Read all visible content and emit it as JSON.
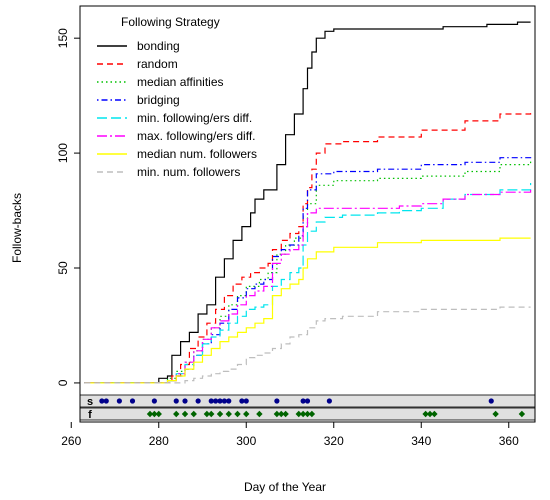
{
  "chart_data": {
    "type": "line",
    "title": "",
    "xlabel": "Day of the Year",
    "ylabel": "Follow-backs",
    "xlim": [
      262,
      366
    ],
    "ylim": [
      -17,
      164
    ],
    "xticks": [
      260,
      280,
      300,
      320,
      340,
      360
    ],
    "yticks": [
      0,
      50,
      100,
      150
    ],
    "grid": false,
    "legend": {
      "title": "Following Strategy",
      "placement": "top-left"
    },
    "series": [
      {
        "name": "bonding",
        "color": "#000000",
        "dash": "solid",
        "points": [
          [
            263,
            0
          ],
          [
            279,
            0
          ],
          [
            280,
            2
          ],
          [
            282,
            3
          ],
          [
            283,
            12
          ],
          [
            285,
            18
          ],
          [
            287,
            22
          ],
          [
            289,
            30
          ],
          [
            291,
            34
          ],
          [
            293,
            46
          ],
          [
            295,
            54
          ],
          [
            297,
            62
          ],
          [
            299,
            68
          ],
          [
            301,
            74
          ],
          [
            302,
            80
          ],
          [
            304,
            84
          ],
          [
            306,
            84
          ],
          [
            307,
            95
          ],
          [
            309,
            108
          ],
          [
            311,
            117
          ],
          [
            313,
            128
          ],
          [
            314,
            137
          ],
          [
            315,
            144
          ],
          [
            316,
            150
          ],
          [
            318,
            153
          ],
          [
            320,
            154
          ],
          [
            325,
            154
          ],
          [
            335,
            154
          ],
          [
            345,
            155
          ],
          [
            355,
            156
          ],
          [
            362,
            157
          ],
          [
            365,
            157
          ]
        ]
      },
      {
        "name": "random",
        "color": "#ff0000",
        "dash": "dashed",
        "points": [
          [
            263,
            0
          ],
          [
            281,
            0
          ],
          [
            283,
            3
          ],
          [
            285,
            8
          ],
          [
            287,
            15
          ],
          [
            289,
            20
          ],
          [
            291,
            26
          ],
          [
            293,
            32
          ],
          [
            295,
            38
          ],
          [
            297,
            43
          ],
          [
            299,
            46
          ],
          [
            301,
            48
          ],
          [
            303,
            50
          ],
          [
            305,
            52
          ],
          [
            306,
            58
          ],
          [
            308,
            62
          ],
          [
            310,
            65
          ],
          [
            312,
            68
          ],
          [
            313,
            78
          ],
          [
            314,
            85
          ],
          [
            315,
            93
          ],
          [
            316,
            100
          ],
          [
            318,
            104
          ],
          [
            322,
            105
          ],
          [
            330,
            107
          ],
          [
            340,
            110
          ],
          [
            350,
            114
          ],
          [
            358,
            117
          ],
          [
            365,
            118
          ]
        ]
      },
      {
        "name": "median affinities",
        "color": "#00c000",
        "dash": "dotted",
        "points": [
          [
            263,
            0
          ],
          [
            280,
            0
          ],
          [
            282,
            2
          ],
          [
            284,
            5
          ],
          [
            286,
            9
          ],
          [
            288,
            14
          ],
          [
            290,
            19
          ],
          [
            292,
            24
          ],
          [
            294,
            29
          ],
          [
            296,
            34
          ],
          [
            298,
            38
          ],
          [
            300,
            42
          ],
          [
            303,
            45
          ],
          [
            305,
            48
          ],
          [
            307,
            56
          ],
          [
            309,
            60
          ],
          [
            311,
            63
          ],
          [
            313,
            68
          ],
          [
            314,
            78
          ],
          [
            316,
            86
          ],
          [
            320,
            88
          ],
          [
            330,
            89
          ],
          [
            340,
            90
          ],
          [
            350,
            92
          ],
          [
            358,
            95
          ],
          [
            365,
            97
          ]
        ]
      },
      {
        "name": "bridging",
        "color": "#0000ff",
        "dash": "dashdot",
        "points": [
          [
            263,
            0
          ],
          [
            280,
            0
          ],
          [
            282,
            1
          ],
          [
            284,
            3
          ],
          [
            286,
            6
          ],
          [
            288,
            12
          ],
          [
            290,
            17
          ],
          [
            292,
            21
          ],
          [
            294,
            26
          ],
          [
            296,
            32
          ],
          [
            298,
            37
          ],
          [
            300,
            41
          ],
          [
            302,
            43
          ],
          [
            304,
            45
          ],
          [
            306,
            55
          ],
          [
            308,
            58
          ],
          [
            310,
            60
          ],
          [
            312,
            64
          ],
          [
            313,
            76
          ],
          [
            314,
            84
          ],
          [
            316,
            91
          ],
          [
            320,
            92
          ],
          [
            325,
            92
          ],
          [
            330,
            93
          ],
          [
            340,
            95
          ],
          [
            350,
            96
          ],
          [
            358,
            98
          ],
          [
            365,
            99
          ]
        ]
      },
      {
        "name": "min. following/ers diff.",
        "color": "#00e5ee",
        "dash": "longdash",
        "points": [
          [
            263,
            0
          ],
          [
            280,
            0
          ],
          [
            282,
            1
          ],
          [
            284,
            4
          ],
          [
            286,
            8
          ],
          [
            288,
            12
          ],
          [
            290,
            17
          ],
          [
            292,
            20
          ],
          [
            294,
            23
          ],
          [
            296,
            26
          ],
          [
            298,
            29
          ],
          [
            300,
            32
          ],
          [
            302,
            33
          ],
          [
            304,
            34
          ],
          [
            306,
            42
          ],
          [
            308,
            45
          ],
          [
            310,
            48
          ],
          [
            312,
            50
          ],
          [
            313,
            60
          ],
          [
            314,
            66
          ],
          [
            316,
            70
          ],
          [
            318,
            72
          ],
          [
            322,
            73
          ],
          [
            330,
            74
          ],
          [
            335,
            75
          ],
          [
            340,
            76
          ],
          [
            345,
            80
          ],
          [
            350,
            82
          ],
          [
            358,
            84
          ],
          [
            365,
            87
          ]
        ]
      },
      {
        "name": "max. following/ers diff.",
        "color": "#ff00ff",
        "dash": "dashdot2",
        "points": [
          [
            263,
            0
          ],
          [
            280,
            0
          ],
          [
            282,
            1
          ],
          [
            284,
            4
          ],
          [
            286,
            9
          ],
          [
            288,
            14
          ],
          [
            290,
            19
          ],
          [
            292,
            24
          ],
          [
            294,
            27
          ],
          [
            296,
            30
          ],
          [
            298,
            34
          ],
          [
            300,
            38
          ],
          [
            302,
            40
          ],
          [
            304,
            42
          ],
          [
            306,
            52
          ],
          [
            308,
            56
          ],
          [
            310,
            58
          ],
          [
            312,
            60
          ],
          [
            313,
            68
          ],
          [
            314,
            74
          ],
          [
            316,
            76
          ],
          [
            320,
            76
          ],
          [
            325,
            76
          ],
          [
            330,
            76
          ],
          [
            335,
            77
          ],
          [
            340,
            78
          ],
          [
            345,
            80
          ],
          [
            350,
            82
          ],
          [
            358,
            83
          ],
          [
            365,
            84
          ]
        ]
      },
      {
        "name": "median num. followers",
        "color": "#ffff00",
        "dash": "solid",
        "points": [
          [
            263,
            0
          ],
          [
            280,
            0
          ],
          [
            282,
            1
          ],
          [
            284,
            3
          ],
          [
            286,
            6
          ],
          [
            288,
            9
          ],
          [
            290,
            12
          ],
          [
            292,
            15
          ],
          [
            294,
            18
          ],
          [
            296,
            20
          ],
          [
            298,
            22
          ],
          [
            300,
            24
          ],
          [
            302,
            26
          ],
          [
            304,
            28
          ],
          [
            306,
            38
          ],
          [
            308,
            41
          ],
          [
            310,
            43
          ],
          [
            312,
            45
          ],
          [
            313,
            50
          ],
          [
            314,
            54
          ],
          [
            316,
            57
          ],
          [
            320,
            59
          ],
          [
            330,
            61
          ],
          [
            340,
            62
          ],
          [
            350,
            62
          ],
          [
            358,
            63
          ],
          [
            365,
            63
          ]
        ]
      },
      {
        "name": "min. num. followers",
        "color": "#bebebe",
        "dash": "dashed",
        "points": [
          [
            263,
            0
          ],
          [
            284,
            0
          ],
          [
            286,
            1
          ],
          [
            288,
            2
          ],
          [
            290,
            3
          ],
          [
            292,
            4
          ],
          [
            294,
            5
          ],
          [
            296,
            6
          ],
          [
            298,
            8
          ],
          [
            300,
            11
          ],
          [
            302,
            12
          ],
          [
            304,
            13
          ],
          [
            306,
            15
          ],
          [
            308,
            17
          ],
          [
            310,
            20
          ],
          [
            312,
            21
          ],
          [
            314,
            24
          ],
          [
            316,
            27
          ],
          [
            318,
            28
          ],
          [
            322,
            29
          ],
          [
            330,
            31
          ],
          [
            340,
            32
          ],
          [
            350,
            32
          ],
          [
            358,
            33
          ],
          [
            365,
            33
          ]
        ]
      }
    ],
    "strips": [
      {
        "label": "s",
        "color": "#00008b",
        "marker": "circle",
        "days": [
          267,
          268,
          271,
          274,
          279,
          284,
          286,
          289,
          292,
          293,
          294,
          295,
          296,
          299,
          300,
          307,
          313,
          314,
          319,
          356
        ]
      },
      {
        "label": "f",
        "color": "#006400",
        "marker": "diamond",
        "days": [
          278,
          279,
          280,
          284,
          286,
          288,
          291,
          292,
          294,
          296,
          298,
          300,
          303,
          307,
          308,
          309,
          312,
          313,
          314,
          315,
          341,
          342,
          343,
          357,
          363
        ]
      }
    ]
  }
}
